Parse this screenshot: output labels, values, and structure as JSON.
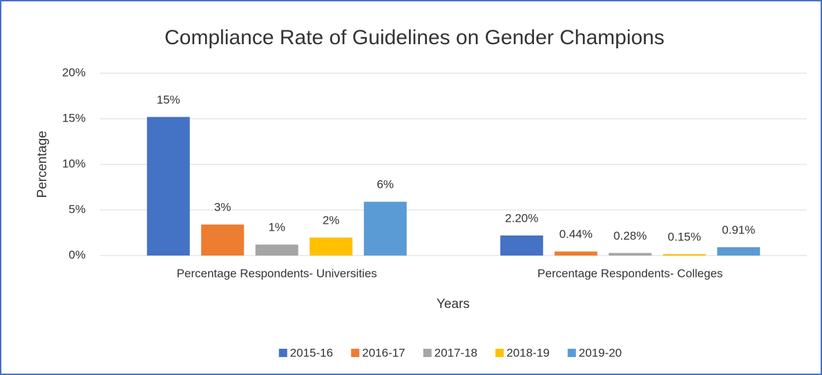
{
  "chart_data": {
    "type": "bar",
    "title": "Compliance Rate of Guidelines on Gender Champions",
    "x_label": "Years",
    "y_label": "Percentage",
    "categories": [
      "Percentage Respondents- Universities",
      "Percentage Respondents- Colleges"
    ],
    "series": [
      {
        "name": "2015-16",
        "color": "#4472c4",
        "values": [
          15.2,
          2.2
        ],
        "value_labels": [
          "15%",
          "2.20%"
        ]
      },
      {
        "name": "2016-17",
        "color": "#ed7d31",
        "values": [
          3.4,
          0.44
        ],
        "value_labels": [
          "3%",
          "0.44%"
        ]
      },
      {
        "name": "2017-18",
        "color": "#a5a5a5",
        "values": [
          1.2,
          0.28
        ],
        "value_labels": [
          "1%",
          "0.28%"
        ]
      },
      {
        "name": "2018-19",
        "color": "#ffc000",
        "values": [
          1.97,
          0.15
        ],
        "value_labels": [
          "2%",
          "0.15%"
        ]
      },
      {
        "name": "2019-20",
        "color": "#5b9bd5",
        "values": [
          5.9,
          0.91
        ],
        "value_labels": [
          "6%",
          "0.91%"
        ]
      }
    ],
    "ylim": [
      0,
      20
    ],
    "yticks": [
      {
        "value": 0,
        "label": "0%"
      },
      {
        "value": 5,
        "label": "5%"
      },
      {
        "value": 10,
        "label": "10%"
      },
      {
        "value": 15,
        "label": "15%"
      },
      {
        "value": 20,
        "label": "20%"
      }
    ],
    "grid": true,
    "legend": "bottom"
  }
}
